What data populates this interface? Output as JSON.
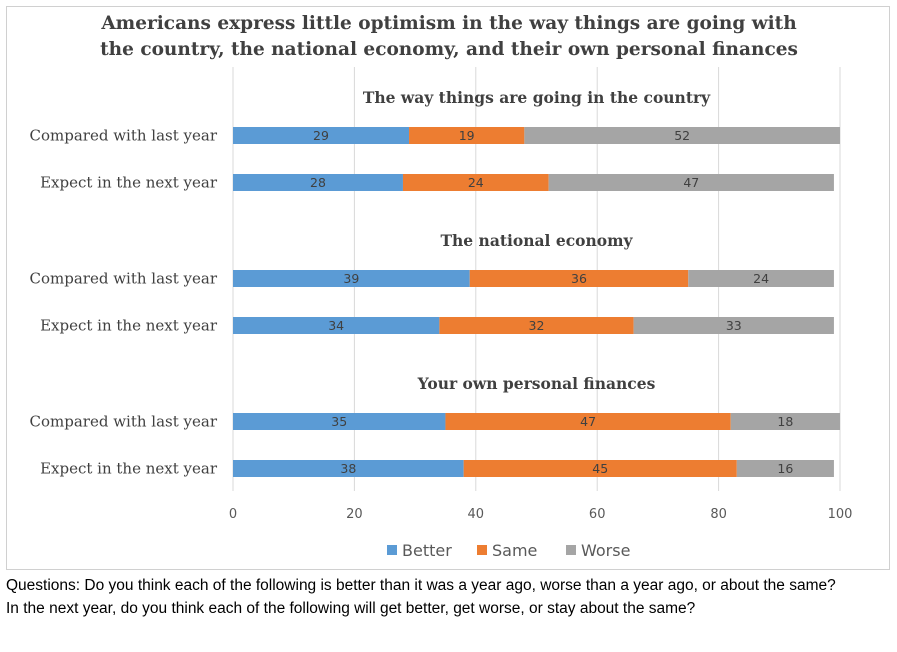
{
  "chart_data": {
    "type": "bar",
    "orientation": "horizontal",
    "stacked": true,
    "title": "Americans express little optimism in the way things are going with the country, the national economy, and their own personal finances",
    "title_lines": [
      "Americans express little optimism in the way things are going with",
      "the country, the national economy, and their own personal finances"
    ],
    "xlim": [
      0,
      100
    ],
    "xticks": [
      0,
      20,
      40,
      60,
      80,
      100
    ],
    "grid": true,
    "legend_position": "bottom",
    "series": [
      {
        "name": "Better",
        "color": "#5b9bd5"
      },
      {
        "name": "Same",
        "color": "#ed7d31"
      },
      {
        "name": "Worse",
        "color": "#a5a5a5"
      }
    ],
    "groups": [
      {
        "title": "The way things are going in the country",
        "rows": [
          {
            "label": "Compared with last year",
            "values": [
              29,
              19,
              52
            ]
          },
          {
            "label": "Expect in the next year",
            "values": [
              28,
              24,
              47
            ]
          }
        ]
      },
      {
        "title": "The national economy",
        "rows": [
          {
            "label": "Compared with last year",
            "values": [
              39,
              36,
              24
            ]
          },
          {
            "label": "Expect in the next year",
            "values": [
              34,
              32,
              33
            ]
          }
        ]
      },
      {
        "title": "Your own personal finances",
        "rows": [
          {
            "label": "Compared with last year",
            "values": [
              35,
              47,
              18
            ]
          },
          {
            "label": "Expect in the next year",
            "values": [
              38,
              45,
              16
            ]
          }
        ]
      }
    ]
  },
  "notes": {
    "line1": "Questions: Do you think each of the following is better than it was a year ago, worse than a year ago, or about the same?",
    "line2": "In the next year, do you think each of the following will get better, get worse, or stay about the same?"
  }
}
